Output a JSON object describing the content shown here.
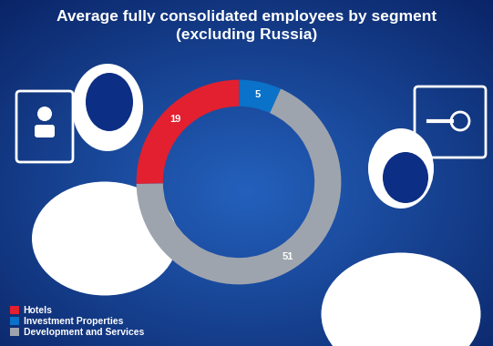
{
  "chart_data": {
    "type": "pie",
    "title": "Average fully consolidated employees by segment",
    "subtitle": "(excluding Russia)",
    "categories": [
      "Hotels",
      "Investment Properties",
      "Development and Services"
    ],
    "values": [
      19,
      5,
      51
    ],
    "colors": [
      "#e3202f",
      "#0a72c8",
      "#9ea4ae"
    ],
    "data_labels": true,
    "legend": "lower left"
  }
}
